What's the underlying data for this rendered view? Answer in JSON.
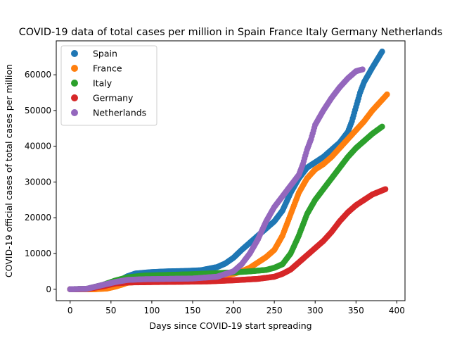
{
  "chart_data": {
    "type": "scatter",
    "title": "COVID-19 data of total cases per million in Spain France Italy Germany Netherlands",
    "xlabel": "Days since COVID-19 start spreading",
    "ylabel": "COVID-19 official cases of total cases per million",
    "xlim": [
      -17,
      410
    ],
    "ylim": [
      -3200,
      69500
    ],
    "xticks": [
      0,
      50,
      100,
      150,
      200,
      250,
      300,
      350,
      400
    ],
    "yticks": [
      0,
      10000,
      20000,
      30000,
      40000,
      50000,
      60000
    ],
    "grid": false,
    "legend_position": "top-left",
    "series": [
      {
        "name": "Spain",
        "color": "#1f77b4",
        "end_day": 382,
        "points": [
          [
            0,
            0
          ],
          [
            20,
            50
          ],
          [
            40,
            500
          ],
          [
            55,
            1800
          ],
          [
            70,
            3600
          ],
          [
            80,
            4400
          ],
          [
            100,
            4800
          ],
          [
            120,
            5000
          ],
          [
            140,
            5100
          ],
          [
            160,
            5300
          ],
          [
            180,
            6200
          ],
          [
            190,
            7200
          ],
          [
            200,
            8800
          ],
          [
            210,
            11000
          ],
          [
            220,
            13000
          ],
          [
            230,
            15000
          ],
          [
            240,
            17000
          ],
          [
            250,
            19000
          ],
          [
            260,
            22000
          ],
          [
            270,
            27000
          ],
          [
            280,
            31000
          ],
          [
            290,
            34000
          ],
          [
            300,
            35500
          ],
          [
            310,
            37000
          ],
          [
            320,
            39000
          ],
          [
            330,
            41000
          ],
          [
            340,
            44000
          ],
          [
            345,
            47000
          ],
          [
            350,
            51000
          ],
          [
            355,
            55000
          ],
          [
            360,
            58000
          ],
          [
            370,
            62000
          ],
          [
            382,
            66500
          ]
        ]
      },
      {
        "name": "France",
        "color": "#ff7f0e",
        "end_day": 388,
        "points": [
          [
            0,
            0
          ],
          [
            30,
            0
          ],
          [
            45,
            200
          ],
          [
            55,
            700
          ],
          [
            65,
            1400
          ],
          [
            70,
            1800
          ],
          [
            80,
            2000
          ],
          [
            100,
            2200
          ],
          [
            130,
            2400
          ],
          [
            160,
            2700
          ],
          [
            180,
            3300
          ],
          [
            200,
            4300
          ],
          [
            210,
            5000
          ],
          [
            220,
            6000
          ],
          [
            230,
            7500
          ],
          [
            240,
            9000
          ],
          [
            250,
            11000
          ],
          [
            260,
            15000
          ],
          [
            265,
            18000
          ],
          [
            270,
            21000
          ],
          [
            280,
            27000
          ],
          [
            290,
            31000
          ],
          [
            300,
            33500
          ],
          [
            310,
            35000
          ],
          [
            320,
            37000
          ],
          [
            330,
            39500
          ],
          [
            340,
            42000
          ],
          [
            350,
            44500
          ],
          [
            360,
            47000
          ],
          [
            370,
            50000
          ],
          [
            380,
            52500
          ],
          [
            388,
            54500
          ]
        ]
      },
      {
        "name": "Italy",
        "color": "#2ca02c",
        "end_day": 382,
        "points": [
          [
            0,
            0
          ],
          [
            20,
            100
          ],
          [
            40,
            1200
          ],
          [
            55,
            2400
          ],
          [
            70,
            3300
          ],
          [
            90,
            3800
          ],
          [
            120,
            4000
          ],
          [
            150,
            4200
          ],
          [
            180,
            4500
          ],
          [
            200,
            4700
          ],
          [
            220,
            5000
          ],
          [
            240,
            5400
          ],
          [
            250,
            6000
          ],
          [
            260,
            7000
          ],
          [
            270,
            10000
          ],
          [
            280,
            15000
          ],
          [
            290,
            21000
          ],
          [
            300,
            25000
          ],
          [
            310,
            28000
          ],
          [
            320,
            31000
          ],
          [
            330,
            34000
          ],
          [
            340,
            37000
          ],
          [
            350,
            39500
          ],
          [
            360,
            41500
          ],
          [
            370,
            43500
          ],
          [
            382,
            45500
          ]
        ]
      },
      {
        "name": "Germany",
        "color": "#d62728",
        "end_day": 386,
        "points": [
          [
            0,
            0
          ],
          [
            20,
            50
          ],
          [
            40,
            800
          ],
          [
            55,
            1600
          ],
          [
            70,
            1900
          ],
          [
            100,
            2000
          ],
          [
            140,
            2100
          ],
          [
            170,
            2200
          ],
          [
            200,
            2500
          ],
          [
            230,
            2900
          ],
          [
            250,
            3500
          ],
          [
            260,
            4300
          ],
          [
            270,
            5500
          ],
          [
            280,
            7500
          ],
          [
            290,
            9500
          ],
          [
            300,
            11500
          ],
          [
            310,
            13500
          ],
          [
            320,
            16000
          ],
          [
            330,
            19000
          ],
          [
            340,
            21500
          ],
          [
            350,
            23500
          ],
          [
            360,
            25000
          ],
          [
            370,
            26500
          ],
          [
            386,
            28000
          ]
        ]
      },
      {
        "name": "Netherlands",
        "color": "#9467bd",
        "end_day": 358,
        "points": [
          [
            0,
            0
          ],
          [
            20,
            100
          ],
          [
            40,
            1200
          ],
          [
            55,
            2000
          ],
          [
            70,
            2600
          ],
          [
            90,
            2800
          ],
          [
            120,
            2900
          ],
          [
            150,
            3000
          ],
          [
            180,
            3500
          ],
          [
            200,
            5000
          ],
          [
            210,
            7000
          ],
          [
            220,
            10000
          ],
          [
            230,
            14000
          ],
          [
            240,
            19000
          ],
          [
            250,
            23000
          ],
          [
            260,
            26000
          ],
          [
            270,
            29000
          ],
          [
            280,
            32000
          ],
          [
            285,
            35000
          ],
          [
            290,
            39000
          ],
          [
            295,
            42000
          ],
          [
            300,
            46000
          ],
          [
            310,
            50000
          ],
          [
            320,
            53500
          ],
          [
            330,
            56500
          ],
          [
            340,
            59000
          ],
          [
            350,
            61000
          ],
          [
            358,
            61500
          ]
        ]
      }
    ]
  }
}
